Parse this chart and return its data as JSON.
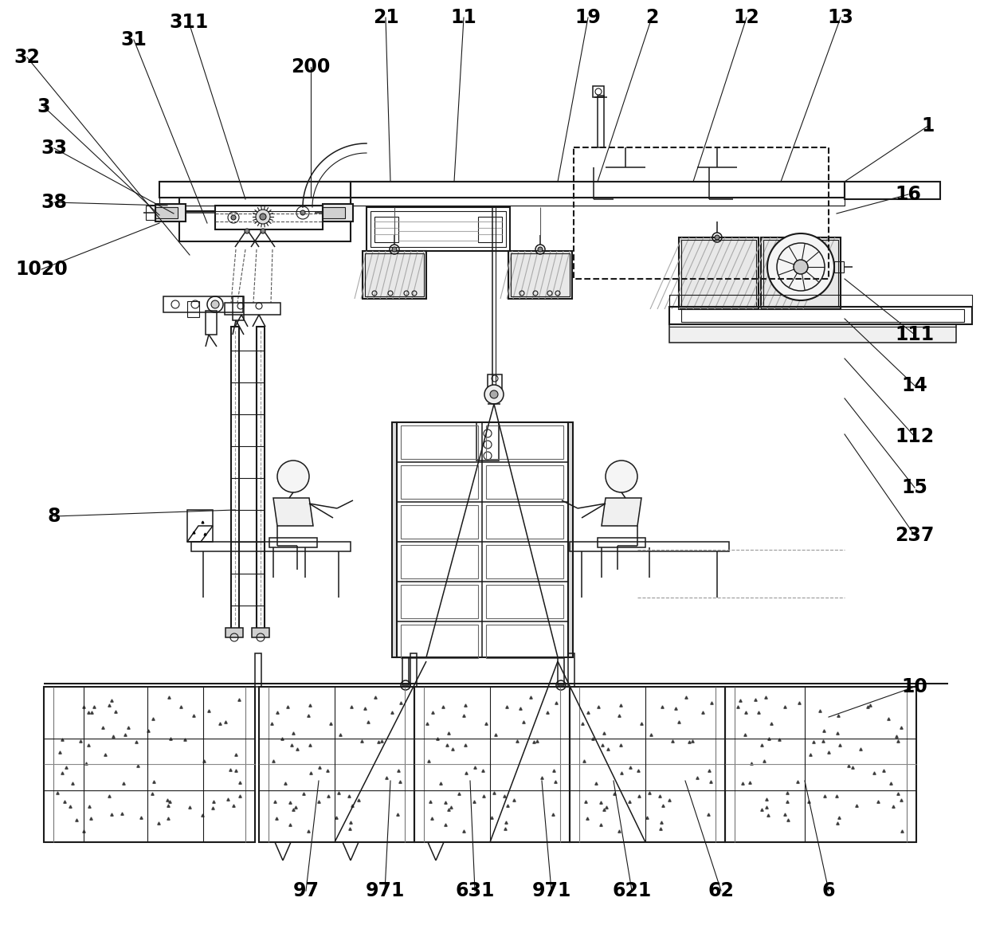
{
  "bg_color": "#ffffff",
  "lc": "#1a1a1a",
  "lc_gray": "#888888",
  "lw_main": 1.5,
  "lw_thin": 0.8,
  "lw_med": 1.1,
  "fs_label": 17,
  "labels": [
    [
      "32",
      34,
      72
    ],
    [
      "31",
      168,
      50
    ],
    [
      "311",
      237,
      28
    ],
    [
      "21",
      484,
      22
    ],
    [
      "11",
      582,
      22
    ],
    [
      "19",
      738,
      22
    ],
    [
      "2",
      818,
      22
    ],
    [
      "12",
      937,
      22
    ],
    [
      "13",
      1055,
      22
    ],
    [
      "3",
      55,
      134
    ],
    [
      "200",
      390,
      84
    ],
    [
      "1",
      1165,
      158
    ],
    [
      "33",
      68,
      186
    ],
    [
      "16",
      1140,
      244
    ],
    [
      "38",
      68,
      254
    ],
    [
      "1020",
      52,
      338
    ],
    [
      "111",
      1148,
      420
    ],
    [
      "14",
      1148,
      484
    ],
    [
      "112",
      1148,
      548
    ],
    [
      "15",
      1148,
      612
    ],
    [
      "237",
      1148,
      672
    ],
    [
      "8",
      68,
      648
    ],
    [
      "10",
      1148,
      862
    ],
    [
      "97",
      384,
      1118
    ],
    [
      "971",
      483,
      1118
    ],
    [
      "631",
      596,
      1118
    ],
    [
      "971",
      692,
      1118
    ],
    [
      "621",
      793,
      1118
    ],
    [
      "62",
      905,
      1118
    ],
    [
      "6",
      1040,
      1118
    ]
  ],
  "ref_lines": [
    [
      34,
      72,
      238,
      320
    ],
    [
      168,
      50,
      260,
      280
    ],
    [
      237,
      28,
      308,
      250
    ],
    [
      484,
      22,
      490,
      228
    ],
    [
      582,
      22,
      570,
      228
    ],
    [
      738,
      22,
      700,
      228
    ],
    [
      818,
      22,
      750,
      228
    ],
    [
      937,
      22,
      870,
      228
    ],
    [
      1055,
      22,
      980,
      228
    ],
    [
      55,
      134,
      200,
      270
    ],
    [
      390,
      84,
      390,
      248
    ],
    [
      1165,
      158,
      1060,
      228
    ],
    [
      68,
      186,
      218,
      268
    ],
    [
      1140,
      244,
      1050,
      268
    ],
    [
      68,
      254,
      210,
      258
    ],
    [
      52,
      338,
      200,
      280
    ],
    [
      1148,
      420,
      1060,
      350
    ],
    [
      1148,
      484,
      1060,
      400
    ],
    [
      1148,
      548,
      1060,
      450
    ],
    [
      1148,
      612,
      1060,
      500
    ],
    [
      1148,
      672,
      1060,
      545
    ],
    [
      68,
      648,
      295,
      640
    ],
    [
      1148,
      862,
      1040,
      900
    ],
    [
      384,
      1118,
      400,
      980
    ],
    [
      483,
      1118,
      490,
      980
    ],
    [
      596,
      1118,
      590,
      980
    ],
    [
      692,
      1118,
      680,
      980
    ],
    [
      793,
      1118,
      770,
      980
    ],
    [
      905,
      1118,
      860,
      980
    ],
    [
      1040,
      1118,
      1010,
      980
    ]
  ]
}
